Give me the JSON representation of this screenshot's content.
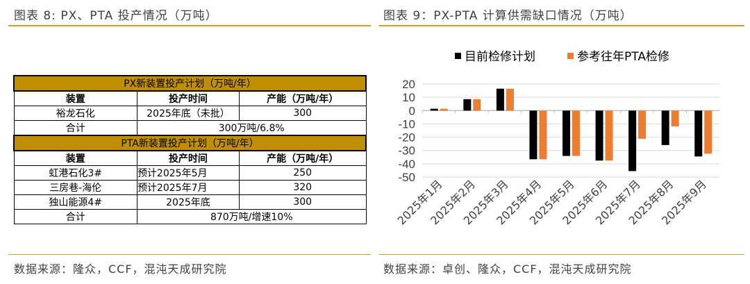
{
  "left": {
    "title": "图表 8: PX、PTA 投产情况（万吨）",
    "source": "数据来源：隆众，CCF，混沌天成研究院",
    "px_header": "PX新装置投产计划（万吨/年）",
    "columns": [
      "装置",
      "投产时间",
      "产能（万吨/年）"
    ],
    "px_rows": [
      [
        "裕龙石化",
        "2025年底（未批）",
        "300"
      ]
    ],
    "px_total": [
      "合计",
      "300万吨/6.8%"
    ],
    "pta_header": "PTA新装置投产计划（万吨/年）",
    "pta_rows": [
      [
        "虹港石化3#",
        "预计2025年5月",
        "250"
      ],
      [
        "三房巷-海伦",
        "预计2025年7月",
        "320"
      ],
      [
        "独山能源4#",
        "2025年底",
        "300"
      ]
    ],
    "pta_total": [
      "合计",
      "870万吨/增速10%"
    ]
  },
  "right": {
    "title": "图表 9：PX-PTA 计算供需缺口情况（万吨）",
    "source": "数据来源：卓创、隆众，CCF，混沌天成研究院"
  },
  "chart_data": {
    "type": "bar",
    "categories": [
      "2025年1月",
      "2025年2月",
      "2025年3月",
      "2025年4月",
      "2025年5月",
      "2025年6月",
      "2025年7月",
      "2025年8月",
      "2025年9月"
    ],
    "series": [
      {
        "name": "目前检修计划",
        "color": "#000000",
        "values": [
          1.4,
          8.6,
          16.5,
          -36.6,
          -34.1,
          -37.6,
          -45.5,
          -25.9,
          -34.5
        ]
      },
      {
        "name": "参考往年PTA检修",
        "color": "#ed7d31",
        "values": [
          1.4,
          8.6,
          16.5,
          -36.6,
          -34.1,
          -37.6,
          -21.2,
          -11.9,
          -32.4
        ]
      }
    ],
    "ylim": [
      -50,
      20
    ],
    "yticks": [
      20,
      10,
      0,
      -10,
      -20,
      -30,
      -40,
      -50
    ],
    "grid": true,
    "legend": "top"
  }
}
